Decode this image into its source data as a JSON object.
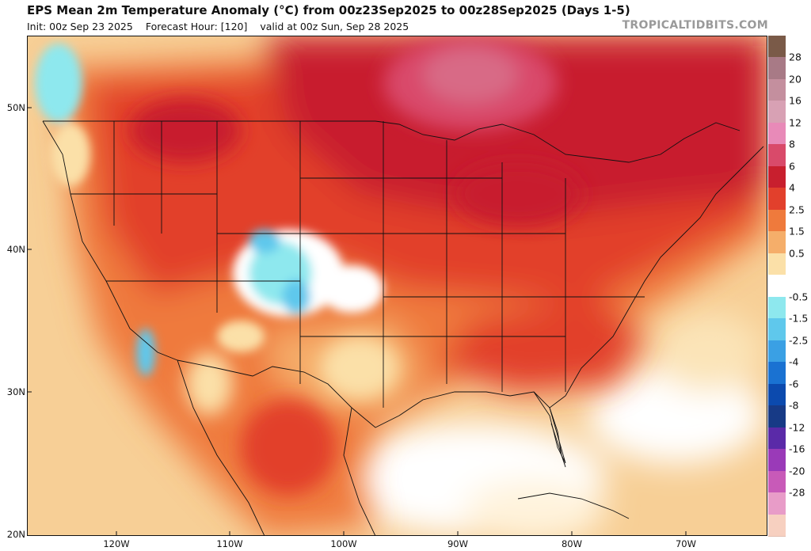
{
  "header": {
    "title": "EPS Mean 2m Temperature Anomaly (°C) from 00z23Sep2025 to 00z28Sep2025 (Days 1-5)",
    "init": "Init: 00z Sep 23 2025",
    "forecast_hour": "Forecast Hour: [120]",
    "valid": "valid at 00z Sun, Sep 28 2025",
    "watermark": "TROPICALTIDBITS.COM"
  },
  "axes": {
    "lat_labels": [
      "50N",
      "40N",
      "30N",
      "20N"
    ],
    "lon_labels": [
      "120W",
      "110W",
      "100W",
      "90W",
      "80W",
      "70W"
    ]
  },
  "colorbar": {
    "levels": [
      "28",
      "20",
      "16",
      "12",
      "8",
      "6",
      "4",
      "2.5",
      "1.5",
      "0.5",
      "-0.5",
      "-1.5",
      "-2.5",
      "-4",
      "-6",
      "-8",
      "-12",
      "-16",
      "-20",
      "-28"
    ],
    "colors": {
      "top": "#7a5a48",
      "28": "#a87a86",
      "20": "#c48f9e",
      "16": "#d8a1b4",
      "12": "#e88ab8",
      "8": "#d94a6a",
      "6": "#c81f2e",
      "4": "#e2402c",
      "2.5": "#ef7a3c",
      "1.5": "#f5ae6a",
      "0.5": "#fbe0a8",
      "zero": "#ffffff",
      "-0.5": "#8ee8ee",
      "-1.5": "#5fc8ec",
      "-2.5": "#3aa0e4",
      "-4": "#1a72d2",
      "-6": "#0c4aae",
      "-8": "#173a86",
      "-12": "#5a2aa8",
      "-16": "#9a3ab8",
      "-20": "#c85ab8",
      "-28": "#e89cc8",
      "bottom": "#f7d0c0"
    }
  }
}
